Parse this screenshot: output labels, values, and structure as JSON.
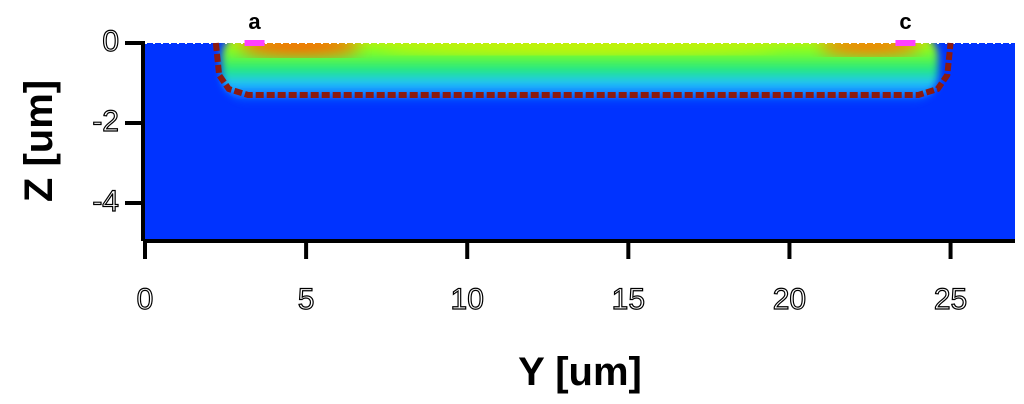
{
  "chart_data": {
    "type": "cross-section",
    "xlabel": "Y [um]",
    "ylabel": "Z [um]",
    "xlim": [
      0,
      27
    ],
    "ylim": [
      -4.9,
      0
    ],
    "xticks": [
      0,
      5,
      10,
      15,
      20,
      25
    ],
    "yticks": [
      0,
      -2,
      -4
    ],
    "background_color": "#0033ff",
    "boundary": {
      "color": "#8b1a10",
      "x": [
        2.2,
        2.3,
        2.6,
        3.2,
        24.0,
        24.6,
        24.9,
        25.0
      ],
      "y": [
        0,
        -0.8,
        -1.15,
        -1.3,
        -1.3,
        -1.15,
        -0.8,
        0
      ]
    },
    "annotations": [
      {
        "text": "a",
        "x": 3.4,
        "color": "#ff40ff"
      },
      {
        "text": "c",
        "x": 23.6,
        "color": "#ff40ff"
      }
    ]
  }
}
